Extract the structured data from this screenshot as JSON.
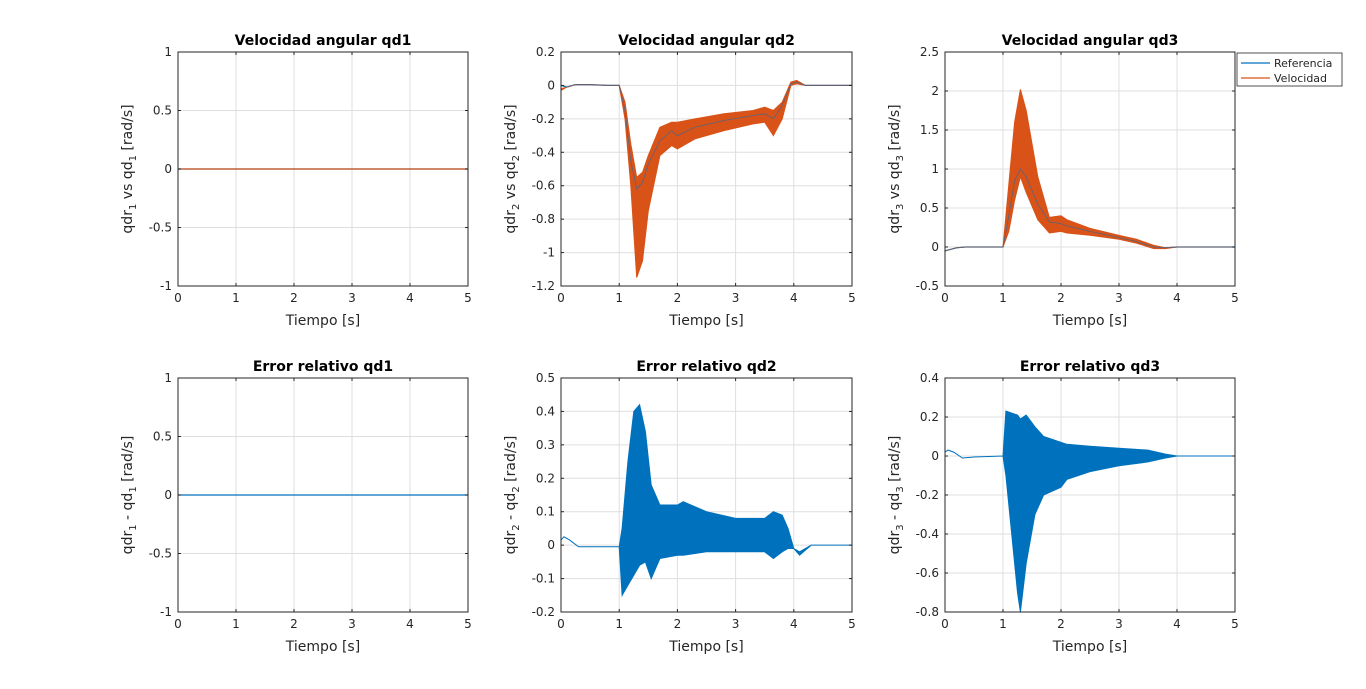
{
  "colors": {
    "reference": "#0072BD",
    "velocity": "#D95319",
    "grid": "#DFDFDF",
    "axis": "#262626"
  },
  "legend": {
    "placement": "top-right",
    "entries": [
      "Referencia",
      "Velocidad"
    ]
  },
  "chart_data": [
    {
      "type": "line",
      "title": "Velocidad angular qd1",
      "xlabel": "Tiempo [s]",
      "ylabel": {
        "pre": "qdr",
        "sub1": "1",
        "mid": " vs qd",
        "sub2": "1",
        "post": " [rad/s]"
      },
      "xlim": [
        0,
        5
      ],
      "ylim": [
        -1,
        1
      ],
      "xticks": [
        0,
        1,
        2,
        3,
        4,
        5
      ],
      "yticks": [
        -1,
        -0.5,
        0,
        0.5,
        1
      ],
      "grid": true,
      "series": [
        {
          "name": "Referencia",
          "x": [
            0,
            5
          ],
          "y": [
            0,
            0
          ]
        },
        {
          "name": "Velocidad",
          "x": [
            0,
            5
          ],
          "y": [
            0,
            0
          ]
        }
      ]
    },
    {
      "type": "line",
      "title": "Velocidad angular qd2",
      "xlabel": "Tiempo [s]",
      "ylabel": {
        "pre": "qdr",
        "sub1": "2",
        "mid": " vs qd",
        "sub2": "2",
        "post": " [rad/s]"
      },
      "xlim": [
        0,
        5
      ],
      "ylim": [
        -1.2,
        0.2
      ],
      "xticks": [
        0,
        1,
        2,
        3,
        4,
        5
      ],
      "yticks": [
        -1.2,
        -1,
        -0.8,
        -0.6,
        -0.4,
        -0.2,
        0,
        0.2
      ],
      "grid": true,
      "series": [
        {
          "name": "Referencia",
          "x": [
            0,
            0.1,
            0.25,
            0.5,
            0.8,
            1.0,
            1.1,
            1.2,
            1.3,
            1.4,
            1.5,
            1.7,
            1.9,
            2.0,
            2.3,
            2.8,
            3.3,
            3.5,
            3.65,
            3.8,
            3.95,
            4.05,
            4.2,
            5
          ],
          "y": [
            0,
            -0.01,
            0.005,
            0.005,
            0,
            0,
            -0.15,
            -0.45,
            -0.62,
            -0.58,
            -0.47,
            -0.33,
            -0.27,
            -0.3,
            -0.25,
            -0.21,
            -0.18,
            -0.17,
            -0.2,
            -0.12,
            0.01,
            0.02,
            0,
            0
          ]
        },
        {
          "name": "Velocidad",
          "amplitude": "band",
          "x": [
            0,
            0.1,
            0.25,
            0.5,
            0.8,
            1.0,
            1.1,
            1.2,
            1.3,
            1.4,
            1.5,
            1.7,
            1.9,
            2.0,
            2.3,
            2.8,
            3.3,
            3.5,
            3.65,
            3.8,
            3.95,
            4.05,
            4.2,
            5
          ],
          "upper": [
            -0.02,
            -0.01,
            0.005,
            0.005,
            0,
            0,
            -0.1,
            -0.35,
            -0.55,
            -0.52,
            -0.42,
            -0.25,
            -0.22,
            -0.22,
            -0.2,
            -0.17,
            -0.15,
            -0.13,
            -0.15,
            -0.1,
            0.02,
            0.03,
            0,
            0
          ],
          "lower": [
            -0.03,
            -0.01,
            0.005,
            0.005,
            0,
            0,
            -0.2,
            -0.6,
            -1.15,
            -1.05,
            -0.75,
            -0.42,
            -0.36,
            -0.38,
            -0.32,
            -0.27,
            -0.23,
            -0.22,
            -0.3,
            -0.2,
            0.0,
            0.01,
            0,
            0
          ]
        }
      ]
    },
    {
      "type": "line",
      "title": "Velocidad angular qd3",
      "xlabel": "Tiempo [s]",
      "ylabel": {
        "pre": "qdr",
        "sub1": "3",
        "mid": " vs qd",
        "sub2": "3",
        "post": " [rad/s]"
      },
      "xlim": [
        0,
        5
      ],
      "ylim": [
        -0.5,
        2.5
      ],
      "xticks": [
        0,
        1,
        2,
        3,
        4,
        5
      ],
      "yticks": [
        -0.5,
        0,
        0.5,
        1,
        1.5,
        2,
        2.5
      ],
      "grid": true,
      "series": [
        {
          "name": "Referencia",
          "x": [
            0,
            0.1,
            0.2,
            0.35,
            1.0,
            1.1,
            1.2,
            1.3,
            1.4,
            1.6,
            1.8,
            2.0,
            2.1,
            2.5,
            3.0,
            3.3,
            3.6,
            3.8,
            4.0,
            5
          ],
          "y": [
            -0.05,
            -0.03,
            -0.01,
            0,
            0,
            0.4,
            0.85,
            1.0,
            0.9,
            0.55,
            0.32,
            0.3,
            0.27,
            0.2,
            0.12,
            0.07,
            0.0,
            -0.01,
            0,
            0
          ]
        },
        {
          "name": "Velocidad",
          "amplitude": "band",
          "x": [
            0,
            0.1,
            0.2,
            0.35,
            1.0,
            1.1,
            1.2,
            1.3,
            1.4,
            1.6,
            1.8,
            2.0,
            2.1,
            2.5,
            3.0,
            3.3,
            3.6,
            3.8,
            4.0,
            5
          ],
          "upper": [
            -0.05,
            -0.03,
            -0.01,
            0,
            0,
            0.8,
            1.6,
            2.02,
            1.75,
            0.9,
            0.38,
            0.4,
            0.35,
            0.24,
            0.15,
            0.1,
            0.02,
            -0.01,
            0,
            0
          ],
          "lower": [
            -0.05,
            -0.03,
            -0.01,
            0,
            0,
            0.2,
            0.6,
            0.9,
            0.7,
            0.35,
            0.18,
            0.2,
            0.18,
            0.15,
            0.1,
            0.05,
            -0.02,
            -0.02,
            0,
            0
          ]
        }
      ]
    },
    {
      "type": "line",
      "title": "Error relativo qd1",
      "xlabel": "Tiempo [s]",
      "ylabel": {
        "pre": "qdr",
        "sub1": "1",
        "mid": " - qd",
        "sub2": "1",
        "post": " [rad/s]"
      },
      "xlim": [
        0,
        5
      ],
      "ylim": [
        -1,
        1
      ],
      "xticks": [
        0,
        1,
        2,
        3,
        4,
        5
      ],
      "yticks": [
        -1,
        -0.5,
        0,
        0.5,
        1
      ],
      "grid": true,
      "series": [
        {
          "name": "Error",
          "x": [
            0,
            5
          ],
          "y": [
            0,
            0
          ]
        }
      ]
    },
    {
      "type": "line",
      "title": "Error relativo qd2",
      "xlabel": "Tiempo [s]",
      "ylabel": {
        "pre": "qdr",
        "sub1": "2",
        "mid": " - qd",
        "sub2": "2",
        "post": " [rad/s]"
      },
      "xlim": [
        0,
        5
      ],
      "ylim": [
        -0.2,
        0.5
      ],
      "xticks": [
        0,
        1,
        2,
        3,
        4,
        5
      ],
      "yticks": [
        -0.2,
        -0.1,
        0,
        0.1,
        0.2,
        0.3,
        0.4,
        0.5
      ],
      "grid": true,
      "series": [
        {
          "name": "Error",
          "amplitude": "band",
          "x": [
            0,
            0.05,
            0.15,
            0.3,
            0.5,
            1.0,
            1.05,
            1.15,
            1.25,
            1.35,
            1.45,
            1.55,
            1.7,
            2.0,
            2.1,
            2.5,
            3.0,
            3.5,
            3.65,
            3.8,
            3.9,
            4.0,
            4.1,
            4.3,
            5
          ],
          "upper": [
            0.015,
            0.025,
            0.015,
            -0.005,
            -0.005,
            -0.005,
            0.05,
            0.25,
            0.4,
            0.42,
            0.34,
            0.18,
            0.12,
            0.12,
            0.13,
            0.1,
            0.08,
            0.08,
            0.1,
            0.09,
            0.05,
            -0.01,
            -0.02,
            0,
            0
          ],
          "lower": [
            0.015,
            0.025,
            0.015,
            -0.005,
            -0.005,
            -0.005,
            -0.15,
            -0.12,
            -0.09,
            -0.06,
            -0.05,
            -0.1,
            -0.04,
            -0.03,
            -0.03,
            -0.02,
            -0.02,
            -0.02,
            -0.04,
            -0.02,
            -0.01,
            -0.01,
            -0.03,
            0,
            0
          ]
        }
      ]
    },
    {
      "type": "line",
      "title": "Error relativo qd3",
      "xlabel": "Tiempo [s]",
      "ylabel": {
        "pre": "qdr",
        "sub1": "3",
        "mid": " - qd",
        "sub2": "3",
        "post": " [rad/s]"
      },
      "xlim": [
        0,
        5
      ],
      "ylim": [
        -0.8,
        0.4
      ],
      "xticks": [
        0,
        1,
        2,
        3,
        4,
        5
      ],
      "yticks": [
        -0.8,
        -0.6,
        -0.4,
        -0.2,
        0,
        0.2,
        0.4
      ],
      "grid": true,
      "series": [
        {
          "name": "Error",
          "amplitude": "band",
          "x": [
            0,
            0.05,
            0.15,
            0.3,
            0.5,
            1.0,
            1.05,
            1.15,
            1.25,
            1.3,
            1.4,
            1.55,
            1.7,
            2.0,
            2.1,
            2.5,
            3.0,
            3.5,
            3.8,
            4.0,
            4.2,
            5
          ],
          "upper": [
            0.02,
            0.03,
            0.02,
            -0.01,
            -0.005,
            0,
            0.23,
            0.22,
            0.21,
            0.19,
            0.21,
            0.15,
            0.1,
            0.07,
            0.06,
            0.05,
            0.04,
            0.03,
            0.01,
            0,
            0,
            0
          ],
          "lower": [
            0.02,
            0.03,
            0.02,
            -0.01,
            -0.005,
            0,
            -0.1,
            -0.4,
            -0.7,
            -0.8,
            -0.55,
            -0.3,
            -0.2,
            -0.16,
            -0.12,
            -0.08,
            -0.05,
            -0.03,
            -0.01,
            0,
            0,
            0
          ]
        }
      ]
    }
  ]
}
